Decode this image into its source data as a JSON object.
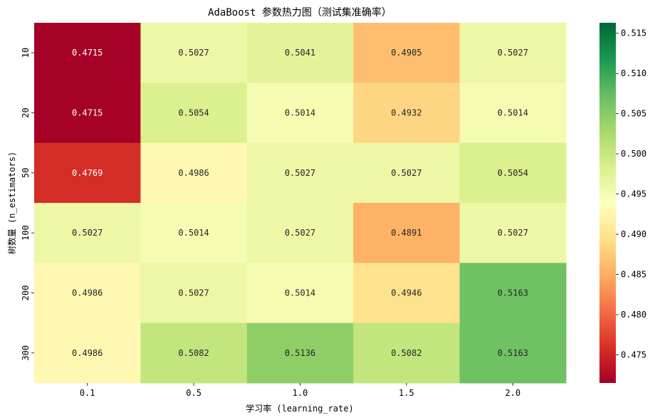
{
  "chart_data": {
    "type": "heatmap",
    "title": "AdaBoost 参数热力图（测试集准确率）",
    "xlabel": "学习率 (learning_rate)",
    "ylabel": "树数量 (n_estimators)",
    "x_categories": [
      "0.1",
      "0.5",
      "1.0",
      "1.5",
      "2.0"
    ],
    "y_categories": [
      "10",
      "20",
      "50",
      "100",
      "200",
      "300"
    ],
    "values": [
      [
        0.4715,
        0.5027,
        0.5041,
        0.4905,
        0.5027
      ],
      [
        0.4715,
        0.5054,
        0.5014,
        0.4932,
        0.5014
      ],
      [
        0.4769,
        0.4986,
        0.5027,
        0.5027,
        0.5054
      ],
      [
        0.5027,
        0.5014,
        0.5027,
        0.4891,
        0.5027
      ],
      [
        0.4986,
        0.5027,
        0.5014,
        0.4946,
        0.5163
      ],
      [
        0.4986,
        0.5082,
        0.5136,
        0.5082,
        0.5163
      ]
    ],
    "value_format": "4 decimals",
    "colormap": "RdYlGn",
    "colorbar": {
      "range": [
        0.4715,
        0.5163
      ],
      "ticks": [
        "0.475",
        "0.480",
        "0.485",
        "0.490",
        "0.495",
        "0.500",
        "0.505",
        "0.510",
        "0.515"
      ]
    },
    "grid": false,
    "legend": "colorbar-right"
  }
}
